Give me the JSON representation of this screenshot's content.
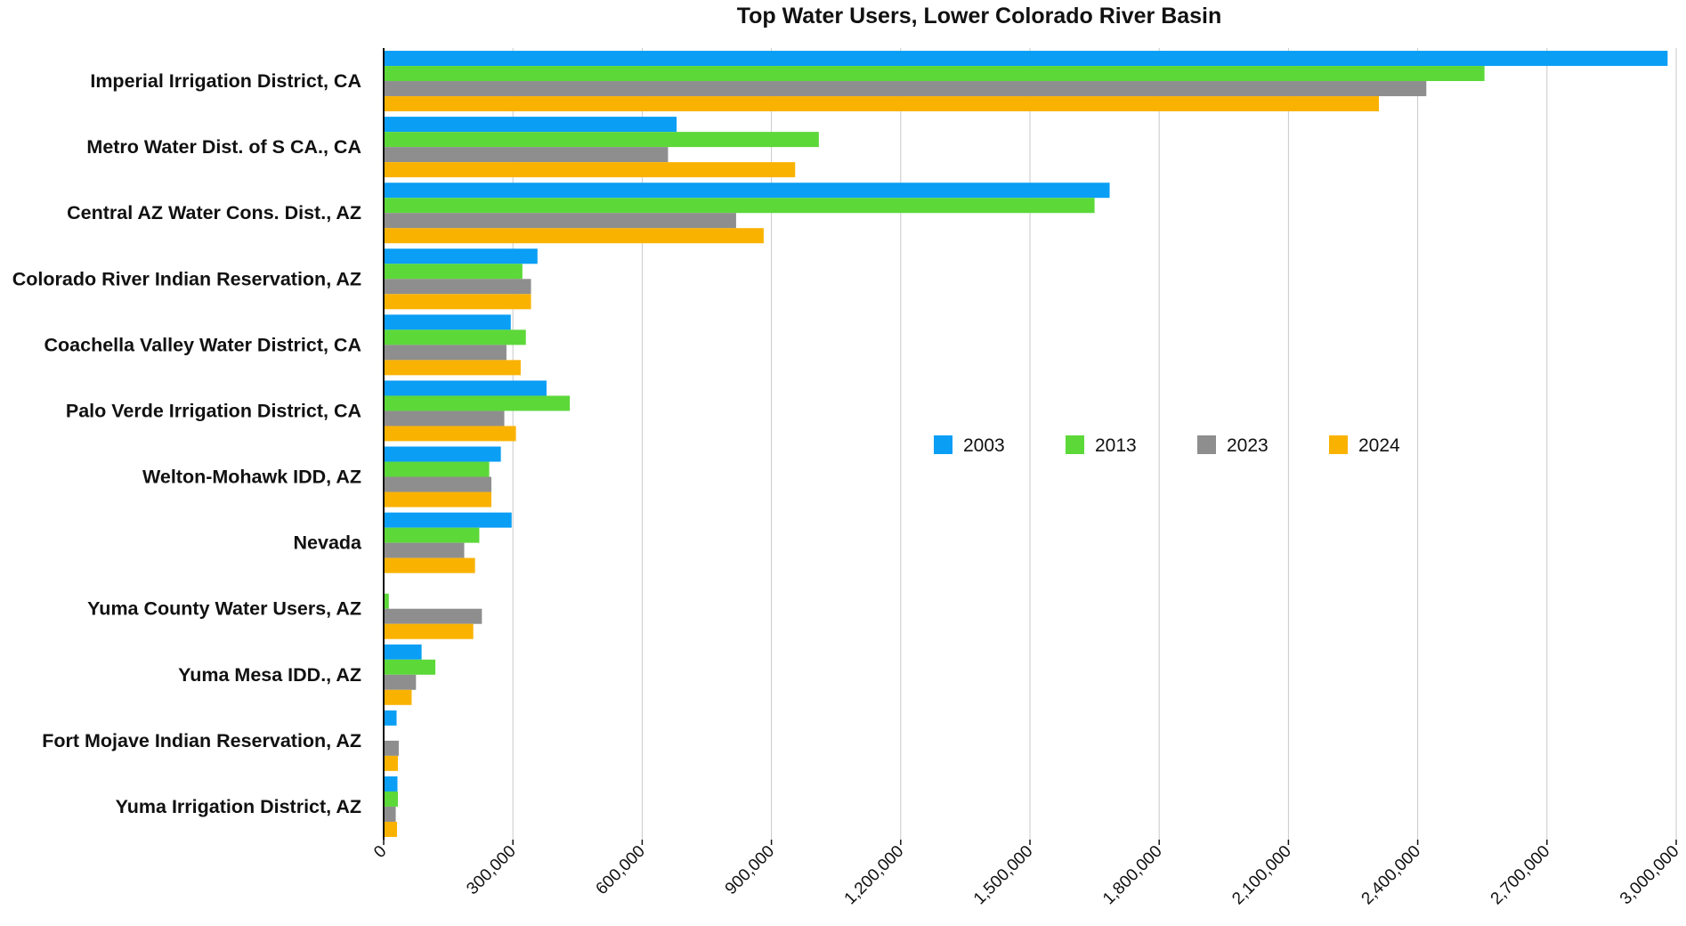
{
  "chart_data": {
    "type": "bar",
    "orientation": "horizontal",
    "title": "Top Water Users, Lower Colorado River Basin",
    "xlabel": "",
    "ylabel": "",
    "xlim": [
      0,
      3000000
    ],
    "x_ticks": [
      "0",
      "300,000",
      "600,000",
      "900,000",
      "1,200,000",
      "1,500,000",
      "1,800,000",
      "2,100,000",
      "2,400,000",
      "2,700,000",
      "3,000,000"
    ],
    "grid": "vertical",
    "legend_position": "center-right",
    "categories": [
      "Imperial Irrigation District, CA",
      "Metro Water Dist. of S CA., CA",
      "Central AZ Water Cons. Dist., AZ",
      "Colorado River Indian Reservation, AZ",
      "Coachella Valley Water District, CA",
      "Palo Verde Irrigation District, CA",
      "Welton-Mohawk IDD, AZ",
      "Nevada",
      "Yuma County Water Users, AZ",
      "Yuma Mesa IDD., AZ",
      "Fort Mojave Indian Reservation, AZ",
      "Yuma Irrigation District, AZ"
    ],
    "series": [
      {
        "name": "2003",
        "color": "#0a9ef5",
        "values": [
          2980000,
          680000,
          1685000,
          357000,
          295000,
          378000,
          272000,
          297000,
          0,
          88000,
          30000,
          32000
        ]
      },
      {
        "name": "2013",
        "color": "#5cd839",
        "values": [
          2555000,
          1010000,
          1650000,
          322000,
          330000,
          432000,
          245000,
          222000,
          12000,
          120000,
          0,
          33000
        ]
      },
      {
        "name": "2023",
        "color": "#8e8e8e",
        "values": [
          2420000,
          660000,
          818000,
          342000,
          285000,
          280000,
          250000,
          187000,
          228000,
          75000,
          35000,
          28000
        ]
      },
      {
        "name": "2024",
        "color": "#fab200",
        "values": [
          2310000,
          955000,
          882000,
          342000,
          318000,
          307000,
          250000,
          212000,
          208000,
          65000,
          33000,
          31000
        ]
      }
    ]
  }
}
